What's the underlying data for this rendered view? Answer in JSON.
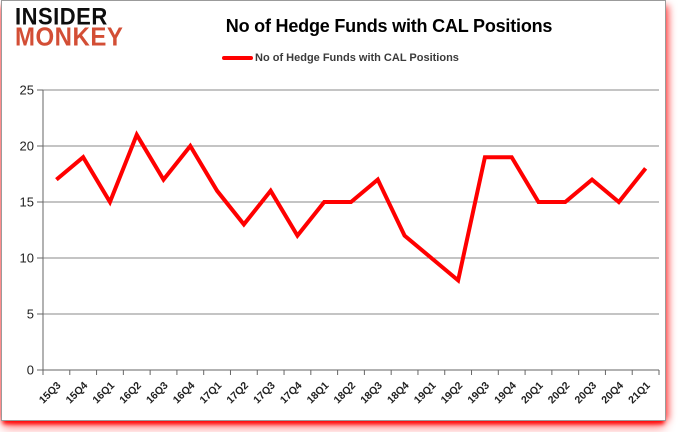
{
  "logo": {
    "line1": "INSIDER",
    "line2": "MONKEY"
  },
  "header": {
    "title": "No of Hedge Funds with CAL Positions"
  },
  "legend": {
    "label": "No of Hedge Funds with CAL Positions"
  },
  "colors": {
    "series": "#FF0000",
    "logo_accent": "#D34E35",
    "gridline": "#8A8A8A",
    "axis": "#666666",
    "tick_text": "#1F1F1F"
  },
  "chart_data": {
    "type": "line",
    "title": "No of Hedge Funds with CAL Positions",
    "categories": [
      "15Q3",
      "15Q4",
      "16Q1",
      "16Q2",
      "16Q3",
      "16Q4",
      "17Q1",
      "17Q2",
      "17Q3",
      "17Q4",
      "18Q1",
      "18Q2",
      "18Q3",
      "18Q4",
      "19Q1",
      "19Q2",
      "19Q3",
      "19Q4",
      "20Q1",
      "20Q2",
      "20Q3",
      "20Q4",
      "21Q1"
    ],
    "series": [
      {
        "name": "No of Hedge Funds with CAL Positions",
        "color": "#FF0000",
        "values": [
          17,
          19,
          15,
          21,
          17,
          20,
          16,
          13,
          16,
          12,
          15,
          15,
          17,
          12,
          10,
          8,
          19,
          19,
          15,
          15,
          17,
          15,
          18
        ]
      }
    ],
    "ylim": [
      0,
      25
    ],
    "yticks": [
      0,
      5,
      10,
      15,
      20,
      25
    ],
    "grid": "horizontal",
    "legend_position": "top",
    "xlabel": "",
    "ylabel": ""
  }
}
